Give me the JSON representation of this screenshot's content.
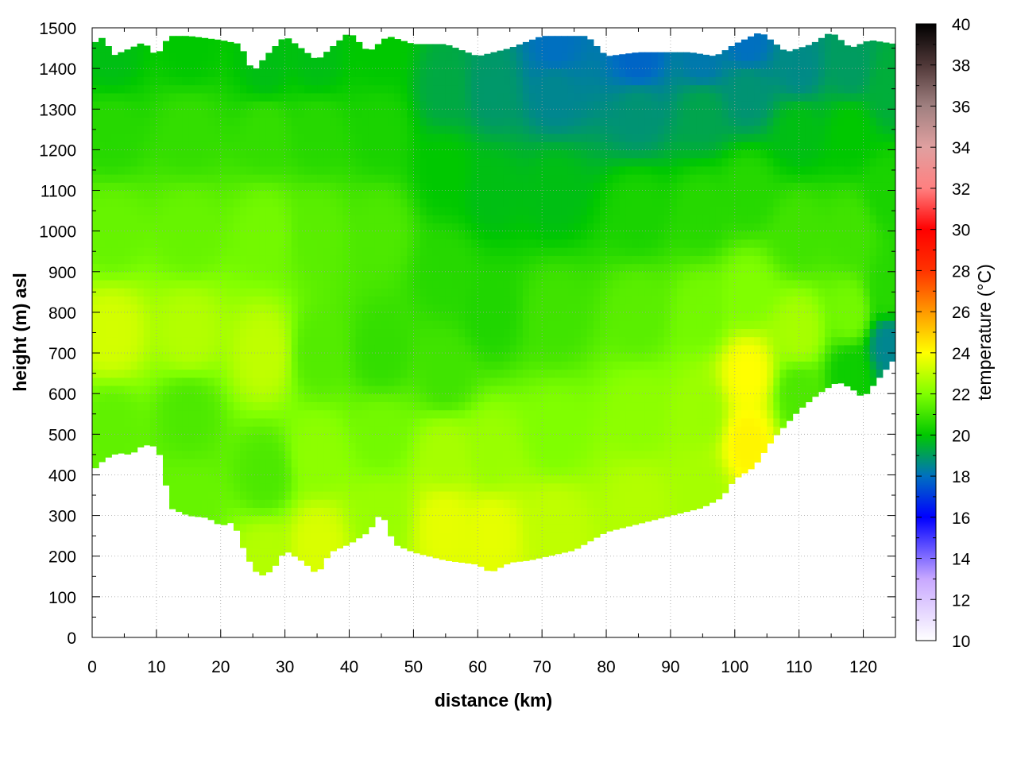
{
  "chart_data": {
    "type": "heatmap",
    "title": "",
    "xlabel": "distance (km)",
    "ylabel": "height (m) asl",
    "colorbar_label": "temperature (°C)",
    "xlim": [
      0,
      125
    ],
    "ylim": [
      0,
      1500
    ],
    "clim": [
      10,
      40
    ],
    "x_ticks": [
      "0",
      "10",
      "20",
      "30",
      "40",
      "50",
      "60",
      "70",
      "80",
      "90",
      "100",
      "110",
      "120"
    ],
    "y_ticks": [
      "0",
      "100",
      "200",
      "300",
      "400",
      "500",
      "600",
      "700",
      "800",
      "900",
      "1000",
      "1100",
      "1200",
      "1300",
      "1400",
      "1500"
    ],
    "colorbar_ticks": [
      "10",
      "12",
      "14",
      "16",
      "18",
      "20",
      "22",
      "24",
      "26",
      "28",
      "30",
      "32",
      "34",
      "36",
      "38",
      "40"
    ],
    "grid": true,
    "colormap": [
      {
        "value": 10,
        "color": "#ffffff"
      },
      {
        "value": 13,
        "color": "#c8a8ff"
      },
      {
        "value": 16,
        "color": "#0000ff"
      },
      {
        "value": 18,
        "color": "#0070c0"
      },
      {
        "value": 20,
        "color": "#00c800"
      },
      {
        "value": 22,
        "color": "#80ff00"
      },
      {
        "value": 24,
        "color": "#ffff00"
      },
      {
        "value": 26,
        "color": "#ff9900"
      },
      {
        "value": 28,
        "color": "#ff3300"
      },
      {
        "value": 30,
        "color": "#ff0000"
      },
      {
        "value": 32,
        "color": "#ff8080"
      },
      {
        "value": 34,
        "color": "#e0a0a0"
      },
      {
        "value": 36,
        "color": "#a08080"
      },
      {
        "value": 38,
        "color": "#503838"
      },
      {
        "value": 40,
        "color": "#000000"
      }
    ],
    "ground_height_m": [
      {
        "x": 0,
        "y": 410
      },
      {
        "x": 2,
        "y": 440
      },
      {
        "x": 4,
        "y": 455
      },
      {
        "x": 6,
        "y": 450
      },
      {
        "x": 8,
        "y": 475
      },
      {
        "x": 10,
        "y": 470
      },
      {
        "x": 11,
        "y": 430
      },
      {
        "x": 12,
        "y": 320
      },
      {
        "x": 15,
        "y": 300
      },
      {
        "x": 18,
        "y": 295
      },
      {
        "x": 20,
        "y": 275
      },
      {
        "x": 22,
        "y": 285
      },
      {
        "x": 24,
        "y": 200
      },
      {
        "x": 26,
        "y": 150
      },
      {
        "x": 28,
        "y": 165
      },
      {
        "x": 30,
        "y": 215
      },
      {
        "x": 33,
        "y": 185
      },
      {
        "x": 35,
        "y": 155
      },
      {
        "x": 37,
        "y": 210
      },
      {
        "x": 40,
        "y": 230
      },
      {
        "x": 43,
        "y": 260
      },
      {
        "x": 45,
        "y": 310
      },
      {
        "x": 47,
        "y": 230
      },
      {
        "x": 50,
        "y": 210
      },
      {
        "x": 55,
        "y": 190
      },
      {
        "x": 60,
        "y": 180
      },
      {
        "x": 62,
        "y": 160
      },
      {
        "x": 65,
        "y": 185
      },
      {
        "x": 68,
        "y": 190
      },
      {
        "x": 75,
        "y": 215
      },
      {
        "x": 80,
        "y": 260
      },
      {
        "x": 85,
        "y": 280
      },
      {
        "x": 90,
        "y": 300
      },
      {
        "x": 95,
        "y": 320
      },
      {
        "x": 98,
        "y": 345
      },
      {
        "x": 100,
        "y": 390
      },
      {
        "x": 103,
        "y": 420
      },
      {
        "x": 106,
        "y": 490
      },
      {
        "x": 110,
        "y": 560
      },
      {
        "x": 113,
        "y": 600
      },
      {
        "x": 116,
        "y": 630
      },
      {
        "x": 118,
        "y": 615
      },
      {
        "x": 120,
        "y": 590
      },
      {
        "x": 122,
        "y": 630
      },
      {
        "x": 125,
        "y": 690
      }
    ],
    "top_height_m": [
      {
        "x": 0,
        "y": 1460
      },
      {
        "x": 2,
        "y": 1480
      },
      {
        "x": 3,
        "y": 1430
      },
      {
        "x": 6,
        "y": 1450
      },
      {
        "x": 8,
        "y": 1465
      },
      {
        "x": 10,
        "y": 1430
      },
      {
        "x": 12,
        "y": 1480
      },
      {
        "x": 15,
        "y": 1480
      },
      {
        "x": 20,
        "y": 1470
      },
      {
        "x": 23,
        "y": 1460
      },
      {
        "x": 25,
        "y": 1390
      },
      {
        "x": 27,
        "y": 1430
      },
      {
        "x": 30,
        "y": 1480
      },
      {
        "x": 35,
        "y": 1420
      },
      {
        "x": 40,
        "y": 1490
      },
      {
        "x": 43,
        "y": 1440
      },
      {
        "x": 46,
        "y": 1480
      },
      {
        "x": 50,
        "y": 1460
      },
      {
        "x": 55,
        "y": 1460
      },
      {
        "x": 60,
        "y": 1430
      },
      {
        "x": 65,
        "y": 1450
      },
      {
        "x": 70,
        "y": 1480
      },
      {
        "x": 77,
        "y": 1480
      },
      {
        "x": 80,
        "y": 1430
      },
      {
        "x": 85,
        "y": 1440
      },
      {
        "x": 93,
        "y": 1440
      },
      {
        "x": 97,
        "y": 1430
      },
      {
        "x": 100,
        "y": 1460
      },
      {
        "x": 104,
        "y": 1490
      },
      {
        "x": 108,
        "y": 1440
      },
      {
        "x": 112,
        "y": 1460
      },
      {
        "x": 115,
        "y": 1490
      },
      {
        "x": 118,
        "y": 1450
      },
      {
        "x": 121,
        "y": 1470
      },
      {
        "x": 125,
        "y": 1460
      }
    ],
    "temperature_samples_c": [
      {
        "x": 3,
        "y": 520,
        "t": 21.5
      },
      {
        "x": 3,
        "y": 750,
        "t": 23.3
      },
      {
        "x": 3,
        "y": 1000,
        "t": 21.6
      },
      {
        "x": 3,
        "y": 1250,
        "t": 20.6
      },
      {
        "x": 3,
        "y": 1430,
        "t": 19.8
      },
      {
        "x": 15,
        "y": 330,
        "t": 21.6
      },
      {
        "x": 15,
        "y": 550,
        "t": 21.2
      },
      {
        "x": 15,
        "y": 750,
        "t": 22.8
      },
      {
        "x": 15,
        "y": 1000,
        "t": 21.6
      },
      {
        "x": 15,
        "y": 1250,
        "t": 20.8
      },
      {
        "x": 15,
        "y": 1450,
        "t": 20.0
      },
      {
        "x": 27,
        "y": 200,
        "t": 22.8
      },
      {
        "x": 27,
        "y": 400,
        "t": 21.2
      },
      {
        "x": 27,
        "y": 700,
        "t": 23.0
      },
      {
        "x": 27,
        "y": 1000,
        "t": 21.8
      },
      {
        "x": 27,
        "y": 1250,
        "t": 20.8
      },
      {
        "x": 27,
        "y": 1400,
        "t": 19.8
      },
      {
        "x": 35,
        "y": 230,
        "t": 23.4
      },
      {
        "x": 35,
        "y": 450,
        "t": 22.2
      },
      {
        "x": 35,
        "y": 700,
        "t": 21.3
      },
      {
        "x": 35,
        "y": 1000,
        "t": 21.4
      },
      {
        "x": 35,
        "y": 1250,
        "t": 20.6
      },
      {
        "x": 35,
        "y": 1420,
        "t": 19.8
      },
      {
        "x": 45,
        "y": 300,
        "t": 22.4
      },
      {
        "x": 45,
        "y": 500,
        "t": 21.8
      },
      {
        "x": 45,
        "y": 700,
        "t": 20.8
      },
      {
        "x": 45,
        "y": 1000,
        "t": 21.2
      },
      {
        "x": 45,
        "y": 1250,
        "t": 20.4
      },
      {
        "x": 45,
        "y": 1450,
        "t": 20.0
      },
      {
        "x": 55,
        "y": 280,
        "t": 23.6
      },
      {
        "x": 55,
        "y": 450,
        "t": 22.6
      },
      {
        "x": 55,
        "y": 650,
        "t": 21.0
      },
      {
        "x": 55,
        "y": 900,
        "t": 20.6
      },
      {
        "x": 55,
        "y": 1150,
        "t": 20.0
      },
      {
        "x": 55,
        "y": 1350,
        "t": 19.3
      },
      {
        "x": 62,
        "y": 260,
        "t": 23.6
      },
      {
        "x": 62,
        "y": 450,
        "t": 22.4
      },
      {
        "x": 62,
        "y": 800,
        "t": 20.5
      },
      {
        "x": 62,
        "y": 1100,
        "t": 19.8
      },
      {
        "x": 62,
        "y": 1350,
        "t": 18.9
      },
      {
        "x": 72,
        "y": 280,
        "t": 23.0
      },
      {
        "x": 72,
        "y": 500,
        "t": 22.0
      },
      {
        "x": 72,
        "y": 800,
        "t": 21.0
      },
      {
        "x": 72,
        "y": 1100,
        "t": 19.8
      },
      {
        "x": 72,
        "y": 1350,
        "t": 18.5
      },
      {
        "x": 72,
        "y": 1450,
        "t": 18.0
      },
      {
        "x": 85,
        "y": 330,
        "t": 22.8
      },
      {
        "x": 85,
        "y": 550,
        "t": 22.2
      },
      {
        "x": 85,
        "y": 800,
        "t": 21.4
      },
      {
        "x": 85,
        "y": 1050,
        "t": 20.4
      },
      {
        "x": 85,
        "y": 1300,
        "t": 18.8
      },
      {
        "x": 85,
        "y": 1420,
        "t": 17.8
      },
      {
        "x": 95,
        "y": 360,
        "t": 22.6
      },
      {
        "x": 95,
        "y": 550,
        "t": 22.4
      },
      {
        "x": 95,
        "y": 800,
        "t": 21.8
      },
      {
        "x": 95,
        "y": 1050,
        "t": 20.6
      },
      {
        "x": 95,
        "y": 1300,
        "t": 19.2
      },
      {
        "x": 95,
        "y": 1420,
        "t": 18.2
      },
      {
        "x": 102,
        "y": 480,
        "t": 24.2
      },
      {
        "x": 102,
        "y": 650,
        "t": 24.0
      },
      {
        "x": 102,
        "y": 850,
        "t": 22.0
      },
      {
        "x": 102,
        "y": 1100,
        "t": 20.6
      },
      {
        "x": 102,
        "y": 1350,
        "t": 18.8
      },
      {
        "x": 102,
        "y": 1460,
        "t": 18.0
      },
      {
        "x": 110,
        "y": 600,
        "t": 21.2
      },
      {
        "x": 110,
        "y": 750,
        "t": 22.6
      },
      {
        "x": 110,
        "y": 1000,
        "t": 21.0
      },
      {
        "x": 110,
        "y": 1250,
        "t": 19.8
      },
      {
        "x": 110,
        "y": 1400,
        "t": 18.6
      },
      {
        "x": 118,
        "y": 650,
        "t": 20.2
      },
      {
        "x": 118,
        "y": 800,
        "t": 21.8
      },
      {
        "x": 118,
        "y": 1000,
        "t": 21.0
      },
      {
        "x": 118,
        "y": 1250,
        "t": 20.0
      },
      {
        "x": 118,
        "y": 1400,
        "t": 19.0
      },
      {
        "x": 124,
        "y": 720,
        "t": 18.5
      },
      {
        "x": 124,
        "y": 850,
        "t": 20.6
      },
      {
        "x": 124,
        "y": 1100,
        "t": 20.4
      },
      {
        "x": 124,
        "y": 1350,
        "t": 19.4
      }
    ]
  }
}
